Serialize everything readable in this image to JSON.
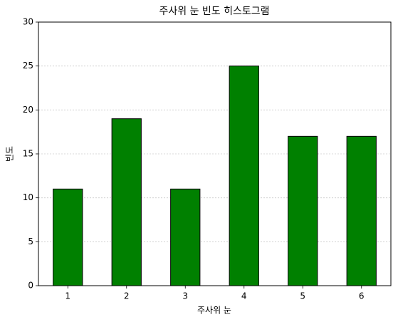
{
  "chart_data": {
    "type": "bar",
    "title": "주사위 눈 빈도 히스토그램",
    "x_label": "주사위 눈",
    "y_label": "빈도",
    "categories": [
      "1",
      "2",
      "3",
      "4",
      "5",
      "6"
    ],
    "values": [
      11,
      19,
      11,
      25,
      17,
      17
    ],
    "color": "#008000",
    "edge_color": "#000000",
    "ylim": [
      0,
      30
    ],
    "yticks": [
      0,
      5,
      10,
      15,
      20,
      25,
      30
    ],
    "grid": true
  }
}
